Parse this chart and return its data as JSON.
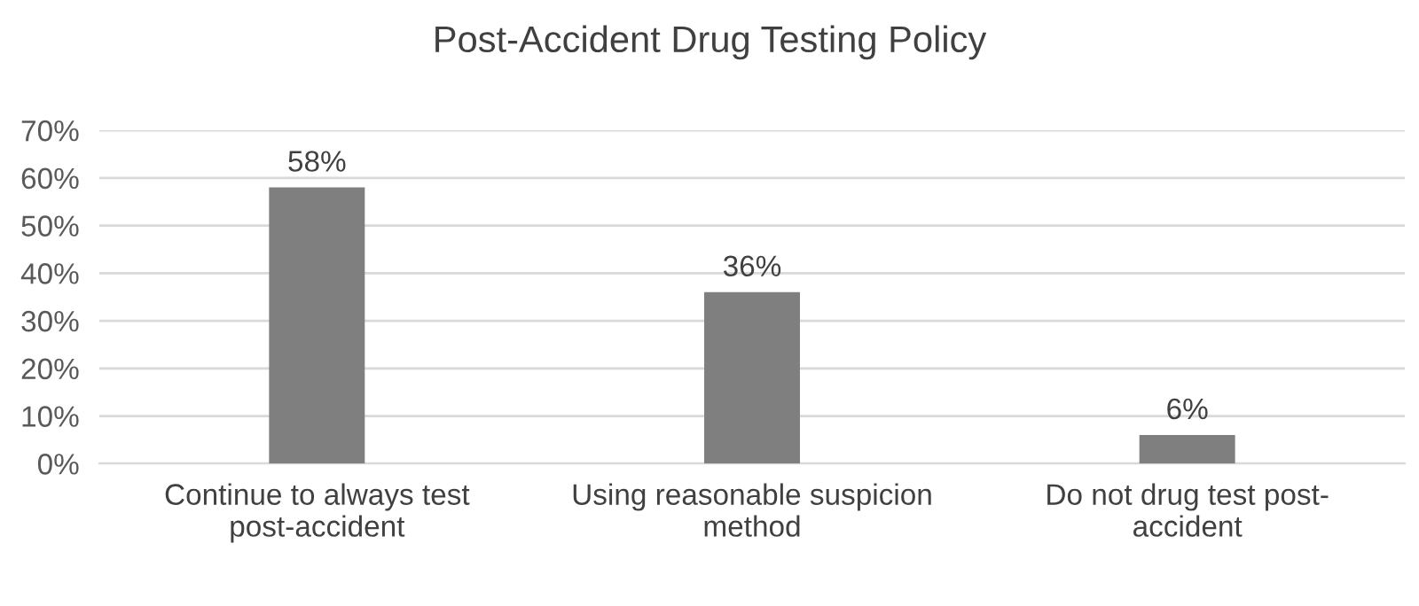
{
  "chart_data": {
    "type": "bar",
    "title": "Post-Accident Drug Testing Policy",
    "categories": [
      "Continue to always test\npost-accident",
      "Using reasonable suspicion\nmethod",
      "Do not drug test post-\naccident"
    ],
    "values": [
      58,
      36,
      6
    ],
    "value_labels": [
      "58%",
      "36%",
      "6%"
    ],
    "color": "#7f7f7f",
    "ylim": [
      0,
      70
    ],
    "yticks": [
      {
        "value": 0,
        "label": "0%"
      },
      {
        "value": 10,
        "label": "10%"
      },
      {
        "value": 20,
        "label": "20%"
      },
      {
        "value": 30,
        "label": "30%"
      },
      {
        "value": 40,
        "label": "40%"
      },
      {
        "value": 50,
        "label": "50%"
      },
      {
        "value": 60,
        "label": "60%"
      },
      {
        "value": 70,
        "label": "70%"
      }
    ],
    "grid": "y"
  }
}
